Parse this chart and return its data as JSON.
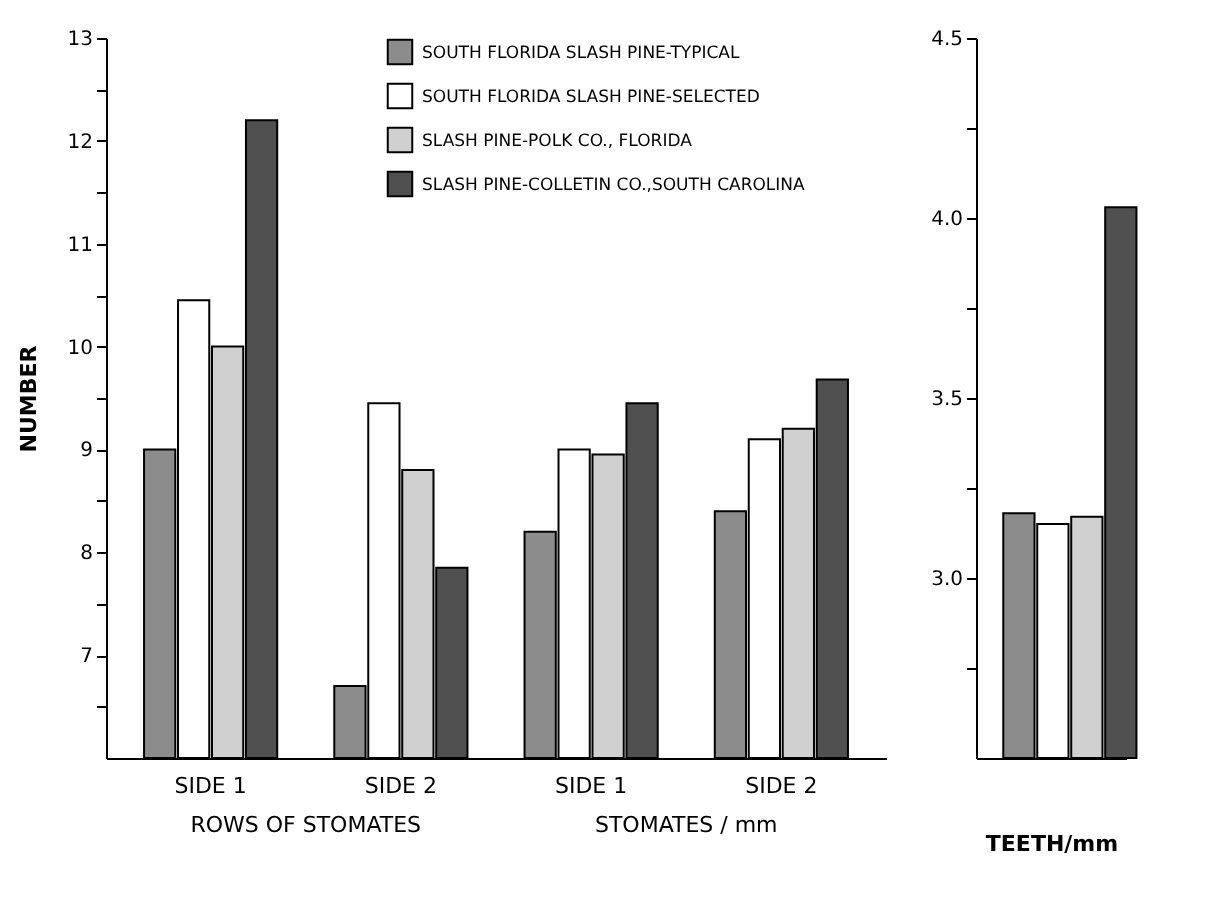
{
  "chart_data": [
    {
      "type": "bar",
      "ylabel": "NUMBER",
      "categories": [
        "SIDE 1",
        "SIDE 2",
        "SIDE 1",
        "SIDE 2"
      ],
      "annotations": [
        "ROWS OF STOMATES",
        "STOMATES / mm"
      ],
      "legend": "top right",
      "ylim": [
        6,
        13
      ],
      "yticks": [
        {
          "value": 6.5,
          "label": null
        },
        7,
        {
          "value": 7.5,
          "label": null
        },
        8,
        {
          "value": 8.5,
          "label": null
        },
        9,
        {
          "value": 9.5,
          "label": null
        },
        10,
        {
          "value": 10.5,
          "label": null
        },
        11,
        {
          "value": 11.5,
          "label": null
        },
        12,
        {
          "value": 12.5,
          "label": null
        },
        13
      ],
      "series": [
        {
          "name": "SOUTH FLORIDA SLASH PINE-TYPICAL",
          "color": "#8c8c8c",
          "values": [
            9.0,
            6.7,
            8.2,
            8.4
          ]
        },
        {
          "name": "SOUTH FLORIDA SLASH PINE-SELECTED",
          "color": "#ffffff",
          "values": [
            10.45,
            9.45,
            9.0,
            9.1
          ]
        },
        {
          "name": "SLASH PINE-POLK CO., FLORIDA",
          "color": "#d0d0d0",
          "values": [
            10.0,
            8.8,
            8.95,
            9.2
          ]
        },
        {
          "name": "SLASH PINE-COLLETIN CO.,SOUTH CAROLINA",
          "color": "#505050",
          "values": [
            12.2,
            7.85,
            9.45,
            9.68
          ]
        }
      ]
    },
    {
      "type": "bar",
      "xlabel": "TEETH/mm",
      "categories": [
        null
      ],
      "ylim": [
        2.5,
        4.5
      ],
      "yticks": [
        {
          "value": 2.75,
          "label": null
        },
        {
          "value": 3,
          "label": "3.0"
        },
        {
          "value": 3.25,
          "label": null
        },
        3.5,
        {
          "value": 3.75,
          "label": null
        },
        {
          "value": 4,
          "label": "4.0"
        },
        {
          "value": 4.25,
          "label": null
        },
        4.5
      ],
      "series": [
        {
          "color": "#8c8c8c",
          "values": [
            3.18
          ]
        },
        {
          "color": "#ffffff",
          "values": [
            3.15
          ]
        },
        {
          "color": "#d0d0d0",
          "values": [
            3.17
          ]
        },
        {
          "color": "#505050",
          "values": [
            4.03
          ]
        }
      ]
    }
  ]
}
